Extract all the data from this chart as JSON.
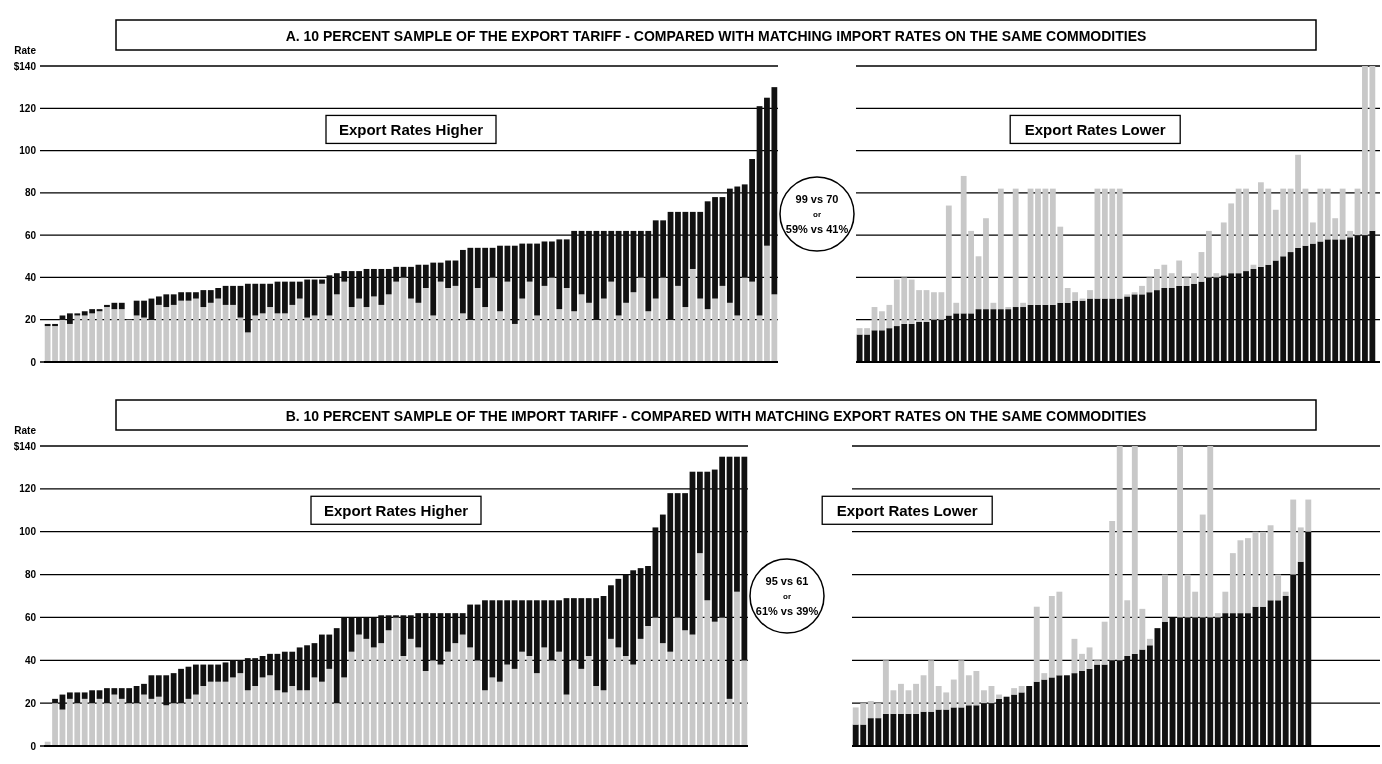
{
  "chart_data": [
    {
      "type": "bar",
      "stacked": true,
      "title": "A. 10 PERCENT SAMPLE OF THE EXPORT TARIFF - COMPARED WITH MATCHING IMPORT RATES ON THE SAME COMMODITIES",
      "ylabel": "Rate",
      "ylim": [
        0,
        140
      ],
      "yticks": [
        0,
        20,
        40,
        60,
        80,
        100,
        120,
        {
          "value": 140,
          "label": "$140"
        }
      ],
      "grid": "y",
      "annotations": [
        "Export Rates Higher",
        "99 vs 70",
        "or",
        "59% vs 41%"
      ],
      "categories": [
        null,
        null,
        null,
        null,
        null,
        null,
        null,
        null,
        null,
        null,
        null,
        null,
        null,
        null,
        null,
        null,
        null,
        null,
        null,
        null,
        null,
        null,
        null,
        null,
        null,
        null,
        null,
        null,
        null,
        null,
        null,
        null,
        null,
        null,
        null,
        null,
        null,
        null,
        null,
        null,
        null,
        null,
        null,
        null,
        null,
        null,
        null,
        null,
        null,
        null,
        null,
        null,
        null,
        null,
        null,
        null,
        null,
        null,
        null,
        null,
        null,
        null,
        null,
        null,
        null,
        null,
        null,
        null,
        null,
        null,
        null,
        null,
        null,
        null,
        null,
        null,
        null,
        null,
        null,
        null,
        null,
        null,
        null,
        null,
        null,
        null,
        null,
        null,
        null,
        null,
        null,
        null,
        null,
        null,
        null,
        null,
        null,
        null,
        null
      ],
      "series": [
        {
          "color": "#c8c8c8",
          "values": [
            17,
            17,
            20,
            18,
            22,
            22,
            23,
            24,
            26,
            25,
            25,
            20,
            22,
            21,
            20,
            27,
            26,
            27,
            29,
            29,
            30,
            26,
            28,
            30,
            27,
            27,
            21,
            14,
            22,
            23,
            26,
            23,
            23,
            27,
            30,
            21,
            22,
            37,
            22,
            32,
            38,
            26,
            30,
            26,
            31,
            27,
            32,
            38,
            40,
            30,
            28,
            35,
            22,
            38,
            35,
            36,
            23,
            20,
            35,
            26,
            40,
            24,
            38,
            18,
            30,
            38,
            22,
            36,
            40,
            25,
            35,
            24,
            32,
            28,
            20,
            30,
            38,
            22,
            28,
            33,
            40,
            24,
            30,
            40,
            20,
            36,
            26,
            44,
            30,
            25,
            30,
            36,
            28,
            22,
            40,
            38,
            22,
            55,
            32
          ]
        },
        {
          "color": "#111111",
          "values": [
            1,
            1,
            2,
            5,
            1,
            2,
            2,
            1,
            1,
            3,
            3,
            0,
            7,
            8,
            10,
            4,
            6,
            5,
            4,
            4,
            3,
            8,
            6,
            5,
            9,
            9,
            15,
            23,
            15,
            14,
            11,
            15,
            15,
            11,
            8,
            18,
            17,
            2,
            19,
            10,
            5,
            17,
            13,
            18,
            13,
            17,
            12,
            7,
            5,
            15,
            18,
            11,
            25,
            9,
            13,
            12,
            30,
            34,
            19,
            28,
            14,
            31,
            17,
            37,
            26,
            18,
            34,
            21,
            17,
            33,
            23,
            38,
            30,
            34,
            42,
            32,
            24,
            40,
            34,
            29,
            22,
            38,
            37,
            27,
            51,
            35,
            45,
            27,
            41,
            51,
            48,
            42,
            54,
            61,
            44,
            58,
            99,
            70,
            98
          ]
        }
      ]
    },
    {
      "type": "bar",
      "stacked": true,
      "ylim": [
        0,
        140
      ],
      "yticks": [
        0,
        20,
        40,
        60,
        80,
        100,
        120,
        140
      ],
      "tick_labels": false,
      "grid": "y",
      "annotations": [
        "Export Rates Lower"
      ],
      "categories": [
        null,
        null,
        null,
        null,
        null,
        null,
        null,
        null,
        null,
        null,
        null,
        null,
        null,
        null,
        null,
        null,
        null,
        null,
        null,
        null,
        null,
        null,
        null,
        null,
        null,
        null,
        null,
        null,
        null,
        null,
        null,
        null,
        null,
        null,
        null,
        null,
        null,
        null,
        null,
        null,
        null,
        null,
        null,
        null,
        null,
        null,
        null,
        null,
        null,
        null,
        null,
        null,
        null,
        null,
        null,
        null,
        null,
        null,
        null,
        null,
        null,
        null,
        null,
        null,
        null,
        null,
        null,
        null,
        null,
        null
      ],
      "series": [
        {
          "color": "#111111",
          "values": [
            13,
            13,
            15,
            15,
            16,
            17,
            18,
            18,
            19,
            19,
            20,
            20,
            22,
            23,
            23,
            23,
            25,
            25,
            25,
            25,
            25,
            26,
            26,
            27,
            27,
            27,
            27,
            28,
            28,
            29,
            29,
            30,
            30,
            30,
            30,
            30,
            31,
            32,
            32,
            33,
            34,
            35,
            35,
            36,
            36,
            37,
            38,
            40,
            40,
            41,
            42,
            42,
            43,
            44,
            45,
            46,
            48,
            50,
            52,
            54,
            55,
            56,
            57,
            58,
            58,
            58,
            59,
            60,
            60,
            62
          ]
        },
        {
          "color": "#c8c8c8",
          "values": [
            3,
            3,
            11,
            9,
            11,
            22,
            22,
            21,
            15,
            15,
            13,
            13,
            52,
            5,
            65,
            39,
            25,
            43,
            3,
            57,
            1,
            56,
            2,
            55,
            55,
            55,
            55,
            36,
            7,
            4,
            1,
            4,
            52,
            52,
            52,
            52,
            1,
            1,
            4,
            7,
            10,
            11,
            7,
            12,
            4,
            5,
            14,
            22,
            2,
            25,
            33,
            40,
            39,
            2,
            40,
            36,
            24,
            32,
            30,
            44,
            27,
            10,
            25,
            24,
            10,
            24,
            3,
            22,
            80,
            78
          ]
        }
      ]
    },
    {
      "type": "bar",
      "stacked": true,
      "title": "B. 10 PERCENT SAMPLE OF THE IMPORT TARIFF - COMPARED WITH MATCHING EXPORT RATES ON THE SAME COMMODITIES",
      "ylabel": "Rate",
      "ylim": [
        0,
        140
      ],
      "yticks": [
        0,
        20,
        40,
        60,
        80,
        100,
        120,
        {
          "value": 140,
          "label": "$140"
        }
      ],
      "grid": "y",
      "annotations": [
        "Export Rates Higher",
        "95 vs 61",
        "or",
        "61% vs 39%"
      ],
      "categories": [
        null,
        null,
        null,
        null,
        null,
        null,
        null,
        null,
        null,
        null,
        null,
        null,
        null,
        null,
        null,
        null,
        null,
        null,
        null,
        null,
        null,
        null,
        null,
        null,
        null,
        null,
        null,
        null,
        null,
        null,
        null,
        null,
        null,
        null,
        null,
        null,
        null,
        null,
        null,
        null,
        null,
        null,
        null,
        null,
        null,
        null,
        null,
        null,
        null,
        null,
        null,
        null,
        null,
        null,
        null,
        null,
        null,
        null,
        null,
        null,
        null,
        null,
        null,
        null,
        null,
        null,
        null,
        null,
        null,
        null,
        null,
        null,
        null,
        null,
        null,
        null,
        null,
        null,
        null,
        null,
        null,
        null,
        null,
        null,
        null,
        null,
        null,
        null,
        null,
        null,
        null,
        null,
        null,
        null,
        null
      ],
      "series": [
        {
          "color": "#c8c8c8",
          "values": [
            2,
            20,
            17,
            22,
            20,
            22,
            20,
            22,
            20,
            24,
            22,
            20,
            20,
            24,
            22,
            23,
            19,
            20,
            20,
            22,
            24,
            28,
            30,
            30,
            30,
            32,
            34,
            26,
            28,
            32,
            33,
            26,
            25,
            28,
            26,
            26,
            32,
            30,
            36,
            20,
            32,
            44,
            52,
            50,
            46,
            48,
            54,
            60,
            42,
            50,
            46,
            35,
            40,
            38,
            44,
            48,
            52,
            46,
            40,
            26,
            32,
            30,
            38,
            36,
            44,
            42,
            34,
            46,
            40,
            44,
            24,
            40,
            36,
            42,
            28,
            26,
            50,
            46,
            42,
            38,
            50,
            56,
            60,
            48,
            44,
            60,
            54,
            52,
            90,
            68,
            58,
            60,
            22,
            72,
            40
          ]
        },
        {
          "color": "#111111",
          "values": [
            0,
            2,
            7,
            3,
            5,
            3,
            6,
            4,
            7,
            3,
            5,
            7,
            8,
            5,
            11,
            10,
            14,
            14,
            16,
            15,
            14,
            10,
            8,
            8,
            9,
            8,
            6,
            15,
            13,
            10,
            10,
            17,
            19,
            16,
            20,
            21,
            16,
            22,
            16,
            35,
            28,
            16,
            8,
            10,
            14,
            13,
            7,
            1,
            19,
            11,
            16,
            27,
            22,
            24,
            18,
            14,
            10,
            20,
            26,
            42,
            36,
            38,
            30,
            32,
            24,
            26,
            34,
            22,
            28,
            24,
            45,
            29,
            33,
            27,
            41,
            44,
            25,
            32,
            38,
            44,
            33,
            28,
            42,
            60,
            74,
            58,
            64,
            76,
            38,
            60,
            71,
            75,
            113,
            63,
            95
          ]
        }
      ]
    },
    {
      "type": "bar",
      "stacked": true,
      "ylim": [
        0,
        140
      ],
      "yticks": [
        0,
        20,
        40,
        60,
        80,
        100,
        120,
        140
      ],
      "tick_labels": false,
      "grid": "y",
      "annotations": [
        "Export Rates Lower"
      ],
      "categories": [
        null,
        null,
        null,
        null,
        null,
        null,
        null,
        null,
        null,
        null,
        null,
        null,
        null,
        null,
        null,
        null,
        null,
        null,
        null,
        null,
        null,
        null,
        null,
        null,
        null,
        null,
        null,
        null,
        null,
        null,
        null,
        null,
        null,
        null,
        null,
        null,
        null,
        null,
        null,
        null,
        null,
        null,
        null,
        null,
        null,
        null,
        null,
        null,
        null,
        null,
        null,
        null,
        null,
        null,
        null,
        null,
        null,
        null,
        null,
        null,
        null
      ],
      "series": [
        {
          "color": "#111111",
          "values": [
            10,
            10,
            13,
            13,
            15,
            15,
            15,
            15,
            15,
            16,
            16,
            17,
            17,
            18,
            18,
            19,
            19,
            20,
            20,
            22,
            23,
            24,
            25,
            28,
            30,
            31,
            32,
            33,
            33,
            34,
            35,
            36,
            38,
            38,
            40,
            40,
            42,
            43,
            45,
            47,
            55,
            58,
            60,
            60,
            60,
            60,
            60,
            60,
            60,
            62,
            62,
            62,
            62,
            65,
            65,
            68,
            68,
            70,
            80,
            86,
            100
          ]
        },
        {
          "color": "#c8c8c8",
          "values": [
            8,
            10,
            8,
            7,
            25,
            11,
            14,
            11,
            14,
            17,
            24,
            11,
            8,
            13,
            22,
            14,
            16,
            6,
            8,
            2,
            0,
            3,
            3,
            0,
            35,
            3,
            38,
            39,
            0,
            16,
            8,
            10,
            2,
            20,
            65,
            100,
            26,
            97,
            19,
            3,
            0,
            22,
            0,
            80,
            20,
            12,
            48,
            80,
            2,
            10,
            28,
            34,
            35,
            35,
            35,
            35,
            12,
            2,
            35,
            16,
            15
          ]
        }
      ]
    }
  ]
}
